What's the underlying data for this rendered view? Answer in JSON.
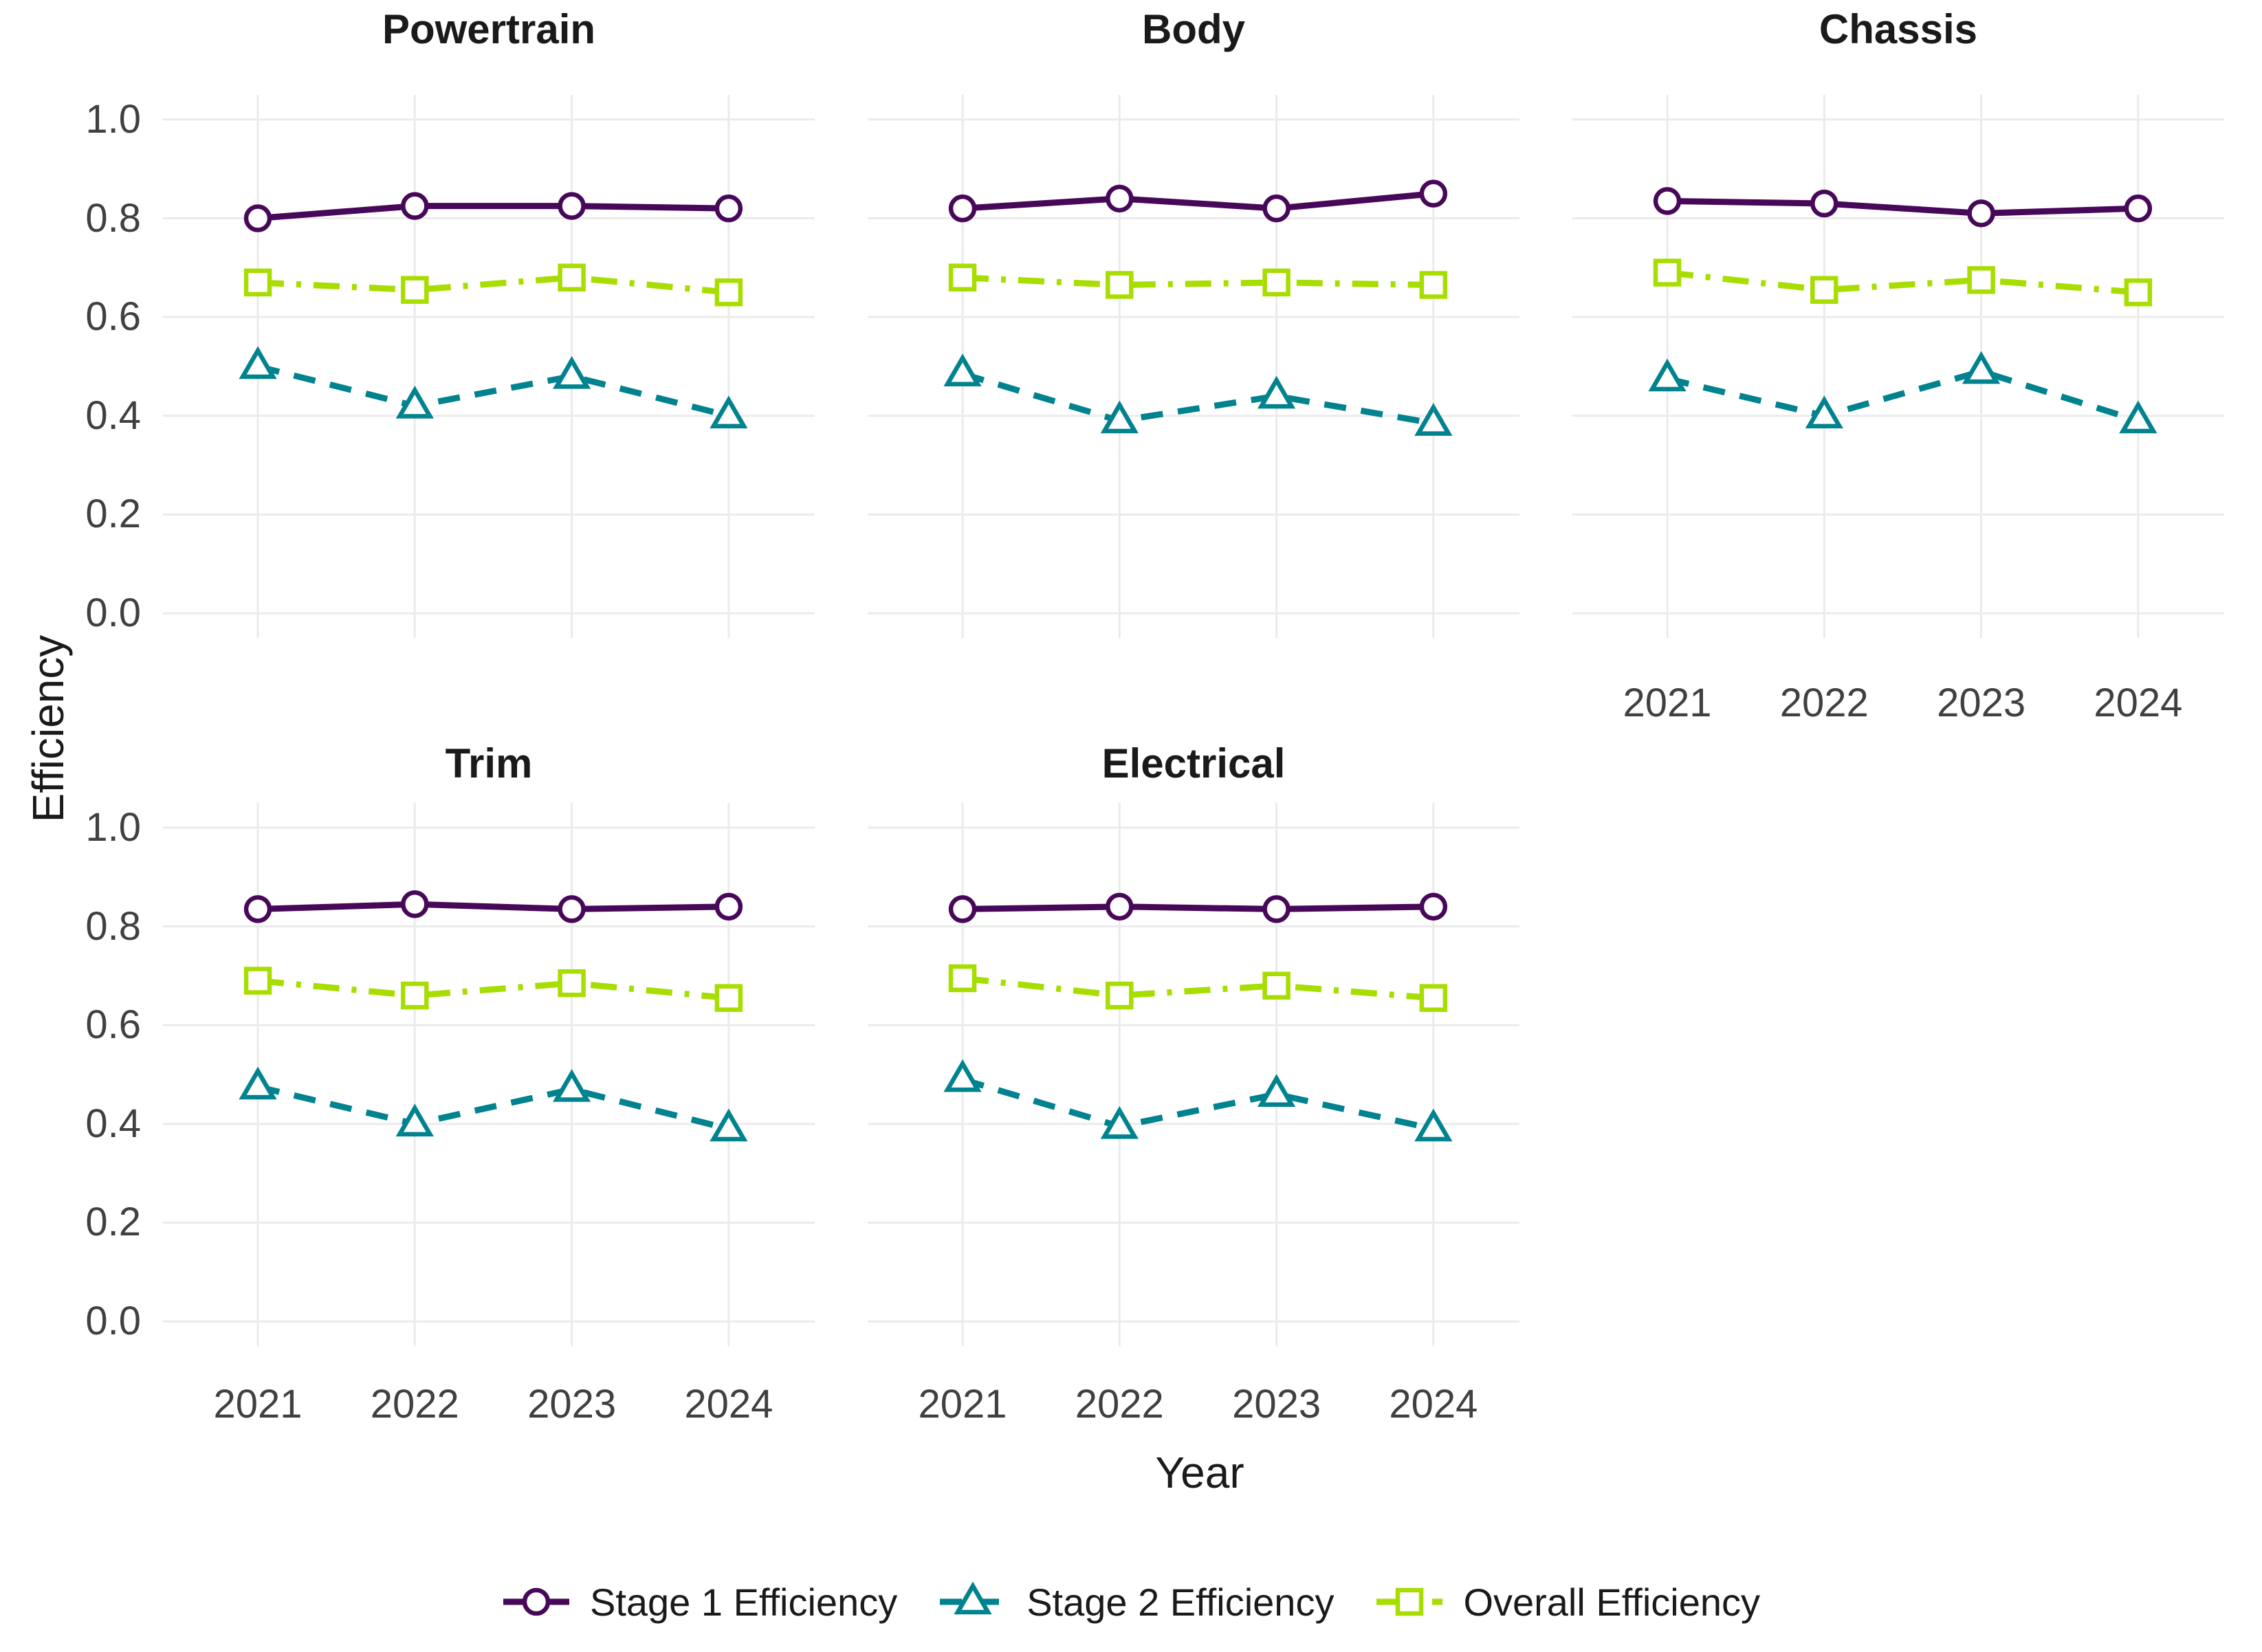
{
  "figure": {
    "y_axis_title": "Efficiency",
    "x_axis_title": "Year",
    "y_tick_labels": [
      "1.0",
      "0.8",
      "0.6",
      "0.4",
      "0.2",
      "0.0"
    ],
    "x_tick_labels": [
      "2021",
      "2022",
      "2023",
      "2024"
    ],
    "colors": {
      "stage1": "#48085A",
      "stage2": "#00838F",
      "overall": "#A8DD00",
      "gridline": "#EBEBEB",
      "tick_text": "#404040",
      "title_text": "#1a1a1a",
      "marker_fill": "#FFFFFF"
    }
  },
  "legend": {
    "items": [
      {
        "key": "stage1",
        "label": "Stage 1 Efficiency",
        "marker": "circle",
        "linetype": "solid"
      },
      {
        "key": "stage2",
        "label": "Stage 2 Efficiency",
        "marker": "triangle",
        "linetype": "dashed"
      },
      {
        "key": "overall",
        "label": "Overall Efficiency",
        "marker": "square",
        "linetype": "dotdash"
      }
    ]
  },
  "chart_data": {
    "type": "line",
    "title": "",
    "xlabel": "Year",
    "ylabel": "Efficiency",
    "x": [
      2021,
      2022,
      2023,
      2024
    ],
    "ylim": [
      0.0,
      1.0
    ],
    "y_ticks": [
      1.0,
      0.8,
      0.6,
      0.4,
      0.2,
      0.0
    ],
    "grid": "major-only",
    "legend_position": "bottom",
    "series_meta": [
      {
        "key": "stage1",
        "name": "Stage 1 Efficiency",
        "marker": "circle",
        "linetype": "solid"
      },
      {
        "key": "stage2",
        "name": "Stage 2 Efficiency",
        "marker": "triangle",
        "linetype": "dashed"
      },
      {
        "key": "overall",
        "name": "Overall Efficiency",
        "marker": "square",
        "linetype": "dotdash"
      }
    ],
    "facets": [
      {
        "title": "Powertrain",
        "grid_row": 0,
        "grid_col": 0,
        "show_x_tick_labels": false,
        "show_y_tick_labels": true,
        "series": {
          "stage1": [
            0.8,
            0.825,
            0.825,
            0.82
          ],
          "stage2": [
            0.5,
            0.42,
            0.48,
            0.4
          ],
          "overall": [
            0.67,
            0.655,
            0.68,
            0.65
          ]
        }
      },
      {
        "title": "Body",
        "grid_row": 0,
        "grid_col": 1,
        "show_x_tick_labels": false,
        "show_y_tick_labels": false,
        "series": {
          "stage1": [
            0.82,
            0.84,
            0.82,
            0.85
          ],
          "stage2": [
            0.485,
            0.39,
            0.44,
            0.385
          ],
          "overall": [
            0.68,
            0.665,
            0.67,
            0.665
          ]
        }
      },
      {
        "title": "Chassis",
        "grid_row": 0,
        "grid_col": 2,
        "show_x_tick_labels": true,
        "show_y_tick_labels": false,
        "series": {
          "stage1": [
            0.835,
            0.83,
            0.81,
            0.82
          ],
          "stage2": [
            0.475,
            0.4,
            0.49,
            0.39
          ],
          "overall": [
            0.69,
            0.655,
            0.675,
            0.65
          ]
        }
      },
      {
        "title": "Trim",
        "grid_row": 1,
        "grid_col": 0,
        "show_x_tick_labels": true,
        "show_y_tick_labels": true,
        "series": {
          "stage1": [
            0.835,
            0.845,
            0.835,
            0.84
          ],
          "stage2": [
            0.475,
            0.4,
            0.47,
            0.39
          ],
          "overall": [
            0.69,
            0.66,
            0.685,
            0.655
          ]
        }
      },
      {
        "title": "Electrical",
        "grid_row": 1,
        "grid_col": 1,
        "show_x_tick_labels": true,
        "show_y_tick_labels": false,
        "series": {
          "stage1": [
            0.835,
            0.84,
            0.835,
            0.84
          ],
          "stage2": [
            0.49,
            0.395,
            0.46,
            0.39
          ],
          "overall": [
            0.695,
            0.66,
            0.68,
            0.655
          ]
        }
      }
    ]
  }
}
